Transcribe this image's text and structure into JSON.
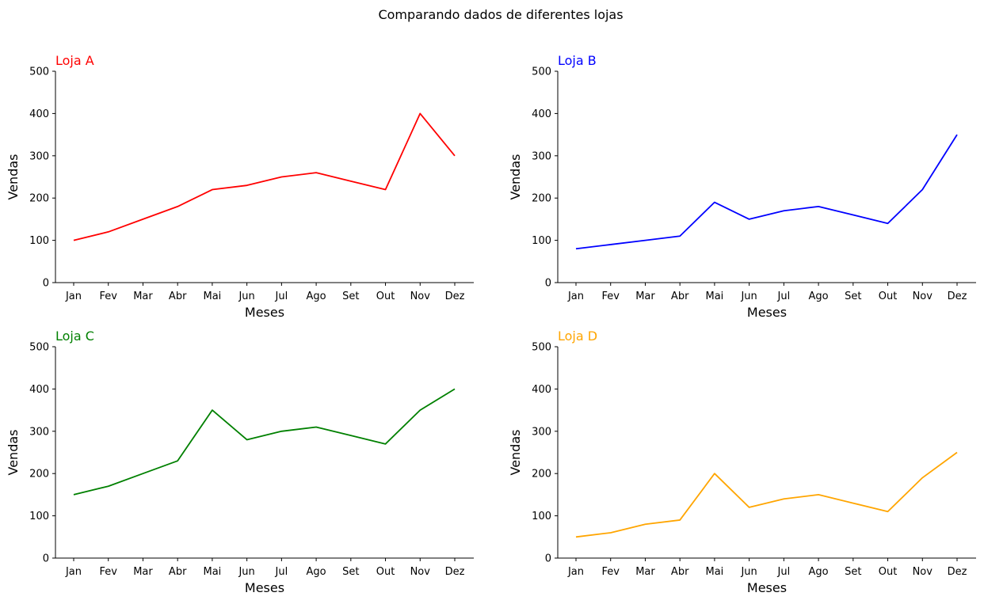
{
  "suptitle": "Comparando dados de diferentes lojas",
  "chart_data": [
    {
      "type": "line",
      "title": "Loja A",
      "color": "#ff0000",
      "xlabel": "Meses",
      "ylabel": "Vendas",
      "categories": [
        "Jan",
        "Fev",
        "Mar",
        "Abr",
        "Mai",
        "Jun",
        "Jul",
        "Ago",
        "Set",
        "Out",
        "Nov",
        "Dez"
      ],
      "values": [
        100,
        120,
        150,
        180,
        220,
        230,
        250,
        260,
        240,
        220,
        400,
        300
      ],
      "ylim": [
        0,
        500
      ],
      "yticks": [
        0,
        100,
        200,
        300,
        400,
        500
      ],
      "grid": false
    },
    {
      "type": "line",
      "title": "Loja B",
      "color": "#0000ff",
      "xlabel": "Meses",
      "ylabel": "Vendas",
      "categories": [
        "Jan",
        "Fev",
        "Mar",
        "Abr",
        "Mai",
        "Jun",
        "Jul",
        "Ago",
        "Set",
        "Out",
        "Nov",
        "Dez"
      ],
      "values": [
        80,
        90,
        100,
        110,
        190,
        150,
        170,
        180,
        160,
        140,
        220,
        350
      ],
      "ylim": [
        0,
        500
      ],
      "yticks": [
        0,
        100,
        200,
        300,
        400,
        500
      ],
      "grid": false
    },
    {
      "type": "line",
      "title": "Loja C",
      "color": "#008000",
      "xlabel": "Meses",
      "ylabel": "Vendas",
      "categories": [
        "Jan",
        "Fev",
        "Mar",
        "Abr",
        "Mai",
        "Jun",
        "Jul",
        "Ago",
        "Set",
        "Out",
        "Nov",
        "Dez"
      ],
      "values": [
        150,
        170,
        200,
        230,
        350,
        280,
        300,
        310,
        290,
        270,
        350,
        400
      ],
      "ylim": [
        0,
        500
      ],
      "yticks": [
        0,
        100,
        200,
        300,
        400,
        500
      ],
      "grid": false
    },
    {
      "type": "line",
      "title": "Loja D",
      "color": "#ffa500",
      "xlabel": "Meses",
      "ylabel": "Vendas",
      "categories": [
        "Jan",
        "Fev",
        "Mar",
        "Abr",
        "Mai",
        "Jun",
        "Jul",
        "Ago",
        "Set",
        "Out",
        "Nov",
        "Dez"
      ],
      "values": [
        50,
        60,
        80,
        90,
        200,
        120,
        140,
        150,
        130,
        110,
        190,
        250
      ],
      "ylim": [
        0,
        500
      ],
      "yticks": [
        0,
        100,
        200,
        300,
        400,
        500
      ],
      "grid": false
    }
  ]
}
